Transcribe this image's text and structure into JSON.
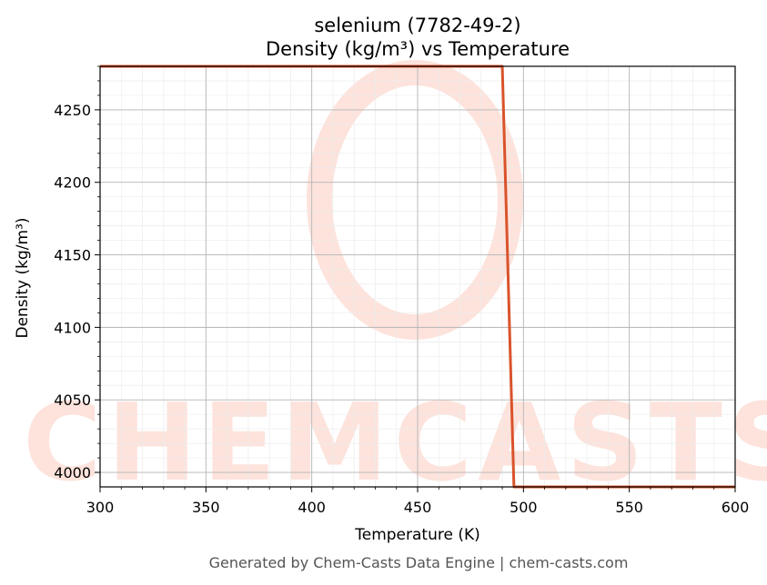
{
  "chart_data": {
    "type": "line",
    "title": "selenium (7782-49-2)",
    "subtitle": "Density (kg/m³) vs Temperature",
    "xlabel": "Temperature (K)",
    "ylabel": "Density (kg/m³)",
    "xlim": [
      300,
      600
    ],
    "ylim": [
      3990,
      4280
    ],
    "xticks": [
      300,
      350,
      400,
      450,
      500,
      550,
      600
    ],
    "yticks": [
      4000,
      4050,
      4100,
      4150,
      4200,
      4250
    ],
    "grid": true,
    "series": [
      {
        "color": "#d9532b",
        "x": [
          300,
          490,
          495.5,
          600
        ],
        "y": [
          4280,
          4280,
          3990,
          3990
        ]
      }
    ]
  },
  "watermark": {
    "text": "CHEMCASTS",
    "color": "#fde3dc"
  },
  "footer": "Generated by Chem-Casts Data Engine | chem-casts.com"
}
